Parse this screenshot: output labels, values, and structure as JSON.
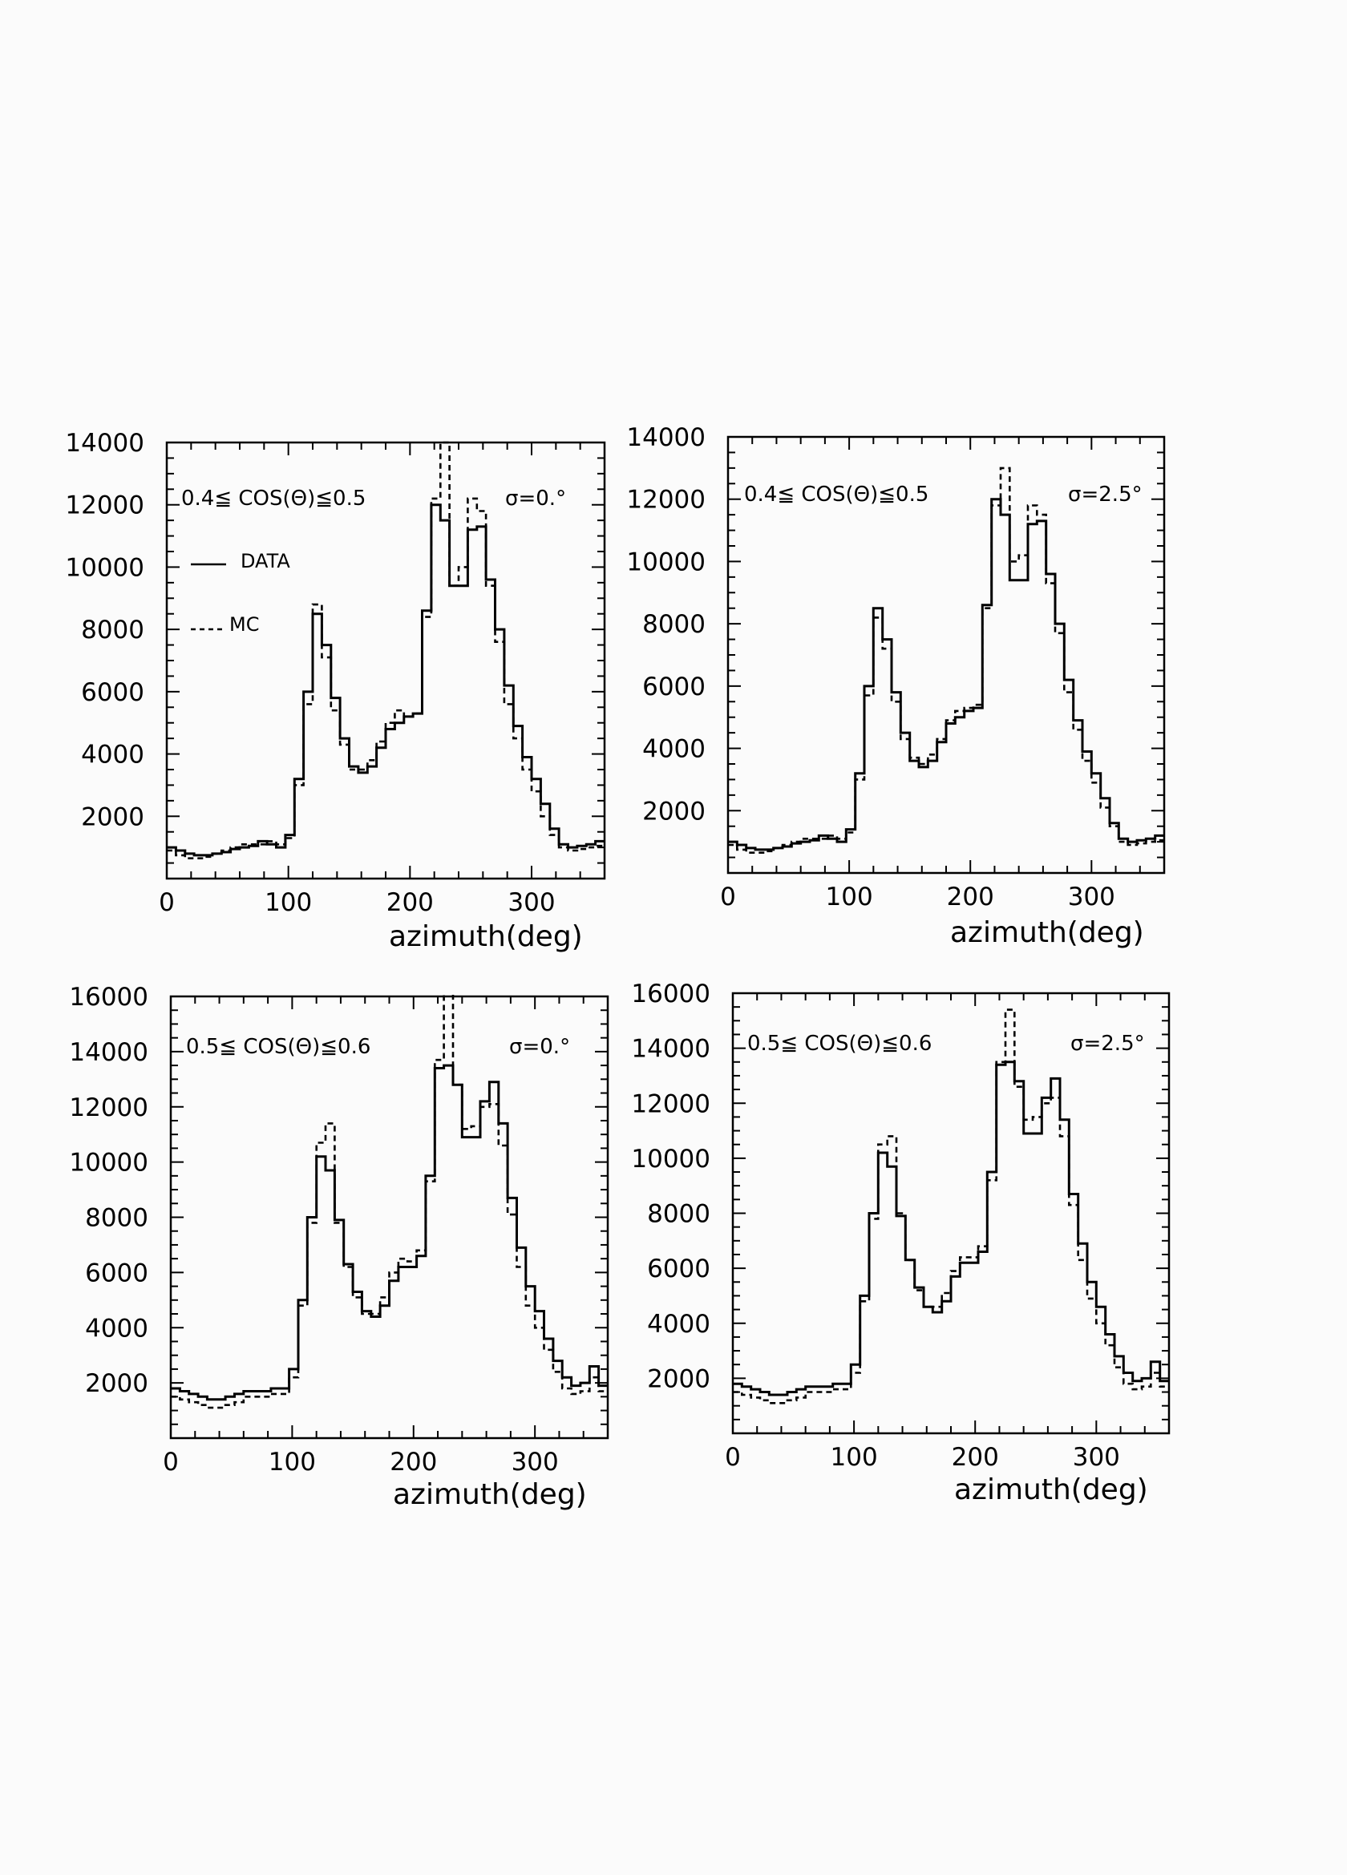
{
  "style": {
    "ink": "#000000",
    "paper": "#fbfbfb"
  },
  "legend": {
    "data_label": "DATA",
    "mc_label": "MC"
  },
  "chart_data": [
    {
      "type": "histogram",
      "cut_label": "0.4≦ COS(Θ)≦0.5",
      "sigma_label": "σ=0.°",
      "xlabel": "azimuth(deg)",
      "xlim": [
        0,
        360
      ],
      "ylim": [
        0,
        14000
      ],
      "xticks": [
        0,
        100,
        200,
        300
      ],
      "yticks": [
        2000,
        4000,
        6000,
        8000,
        10000,
        12000,
        14000
      ],
      "bin_width": 7.5,
      "series": [
        {
          "name": "DATA",
          "values": [
            1000,
            900,
            800,
            750,
            750,
            800,
            850,
            950,
            1000,
            1050,
            1200,
            1100,
            1000,
            1400,
            3200,
            6000,
            8500,
            7500,
            5800,
            4500,
            3600,
            3400,
            3600,
            4200,
            4800,
            5000,
            5200,
            5300,
            8600,
            12000,
            11500,
            9400,
            9400,
            11200,
            11300,
            9600,
            8000,
            6200,
            4900,
            3900,
            3200,
            2400,
            1600,
            1100,
            1000,
            1050,
            1100,
            1200
          ]
        },
        {
          "name": "MC",
          "values": [
            900,
            750,
            650,
            650,
            700,
            800,
            900,
            1000,
            1100,
            1100,
            1100,
            1200,
            1100,
            1300,
            3000,
            5600,
            8800,
            7100,
            5400,
            4300,
            3500,
            3500,
            3800,
            4400,
            5000,
            5400,
            5200,
            5300,
            8400,
            12200,
            14000,
            9400,
            10000,
            12200,
            11800,
            9400,
            7600,
            5600,
            4500,
            3500,
            2800,
            2000,
            1400,
            1000,
            900,
            950,
            1000,
            1050
          ]
        }
      ]
    },
    {
      "type": "histogram",
      "cut_label": "0.4≦ COS(Θ)≦0.5",
      "sigma_label": "σ=2.5°",
      "xlabel": "azimuth(deg)",
      "xlim": [
        0,
        360
      ],
      "ylim": [
        0,
        14000
      ],
      "xticks": [
        0,
        100,
        200,
        300
      ],
      "yticks": [
        2000,
        4000,
        6000,
        8000,
        10000,
        12000,
        14000
      ],
      "bin_width": 7.5,
      "series": [
        {
          "name": "DATA",
          "values": [
            1000,
            900,
            800,
            750,
            750,
            800,
            850,
            950,
            1000,
            1050,
            1200,
            1100,
            1000,
            1400,
            3200,
            6000,
            8500,
            7500,
            5800,
            4500,
            3600,
            3400,
            3600,
            4200,
            4800,
            5000,
            5200,
            5300,
            8600,
            12000,
            11500,
            9400,
            9400,
            11200,
            11300,
            9600,
            8000,
            6200,
            4900,
            3900,
            3200,
            2400,
            1600,
            1100,
            1000,
            1050,
            1100,
            1200
          ]
        },
        {
          "name": "MC",
          "values": [
            900,
            750,
            650,
            650,
            700,
            800,
            900,
            1000,
            1100,
            1100,
            1100,
            1200,
            1100,
            1300,
            3000,
            5700,
            8200,
            7200,
            5500,
            4300,
            3700,
            3500,
            3800,
            4300,
            4900,
            5200,
            5300,
            5400,
            8500,
            11800,
            13000,
            10000,
            10200,
            11800,
            11500,
            9300,
            7700,
            5800,
            4600,
            3600,
            2900,
            2100,
            1500,
            1000,
            900,
            950,
            1000,
            1050
          ]
        }
      ]
    },
    {
      "type": "histogram",
      "cut_label": "0.5≦ COS(Θ)≦0.6",
      "sigma_label": "σ=0.°",
      "xlabel": "azimuth(deg)",
      "xlim": [
        0,
        360
      ],
      "ylim": [
        0,
        16000
      ],
      "xticks": [
        0,
        100,
        200,
        300
      ],
      "yticks": [
        2000,
        4000,
        6000,
        8000,
        10000,
        12000,
        14000,
        16000
      ],
      "bin_width": 7.5,
      "series": [
        {
          "name": "DATA",
          "values": [
            1800,
            1700,
            1600,
            1500,
            1400,
            1400,
            1500,
            1600,
            1700,
            1700,
            1700,
            1800,
            1800,
            2500,
            5000,
            8000,
            10200,
            9700,
            7900,
            6300,
            5300,
            4600,
            4400,
            4800,
            5700,
            6200,
            6200,
            6600,
            9500,
            13400,
            13500,
            12800,
            10900,
            10900,
            12200,
            12900,
            11400,
            8700,
            6900,
            5500,
            4600,
            3600,
            2800,
            2200,
            1900,
            2000,
            2600,
            1900
          ]
        },
        {
          "name": "MC",
          "values": [
            1500,
            1400,
            1300,
            1200,
            1100,
            1100,
            1200,
            1300,
            1500,
            1500,
            1500,
            1600,
            1600,
            2200,
            4800,
            7800,
            10700,
            11400,
            7800,
            6200,
            5100,
            4500,
            4500,
            5100,
            6000,
            6500,
            6400,
            6800,
            9300,
            13700,
            16500,
            12800,
            11200,
            11300,
            12000,
            12100,
            10600,
            8100,
            6200,
            4800,
            4000,
            3200,
            2400,
            1800,
            1600,
            1700,
            2200,
            1700
          ]
        }
      ]
    },
    {
      "type": "histogram",
      "cut_label": "0.5≦ COS(Θ)≦0.6",
      "sigma_label": "σ=2.5°",
      "xlabel": "azimuth(deg)",
      "xlim": [
        0,
        360
      ],
      "ylim": [
        0,
        16000
      ],
      "xticks": [
        0,
        100,
        200,
        300
      ],
      "yticks": [
        2000,
        4000,
        6000,
        8000,
        10000,
        12000,
        14000,
        16000
      ],
      "bin_width": 7.5,
      "series": [
        {
          "name": "DATA",
          "values": [
            1800,
            1700,
            1600,
            1500,
            1400,
            1400,
            1500,
            1600,
            1700,
            1700,
            1700,
            1800,
            1800,
            2500,
            5000,
            8000,
            10200,
            9700,
            7900,
            6300,
            5300,
            4600,
            4400,
            4800,
            5700,
            6200,
            6200,
            6600,
            9500,
            13400,
            13500,
            12800,
            10900,
            10900,
            12200,
            12900,
            11400,
            8700,
            6900,
            5500,
            4600,
            3600,
            2800,
            2200,
            1900,
            2000,
            2600,
            1900
          ]
        },
        {
          "name": "MC",
          "values": [
            1500,
            1400,
            1300,
            1200,
            1100,
            1100,
            1200,
            1300,
            1500,
            1500,
            1500,
            1600,
            1600,
            2200,
            4800,
            7800,
            10500,
            10800,
            8000,
            6300,
            5200,
            4600,
            4600,
            5100,
            5900,
            6400,
            6400,
            6800,
            9200,
            13500,
            15400,
            12600,
            11400,
            11500,
            12000,
            12200,
            10800,
            8300,
            6300,
            4900,
            4000,
            3200,
            2400,
            1800,
            1600,
            1700,
            2200,
            1700
          ]
        }
      ]
    }
  ]
}
